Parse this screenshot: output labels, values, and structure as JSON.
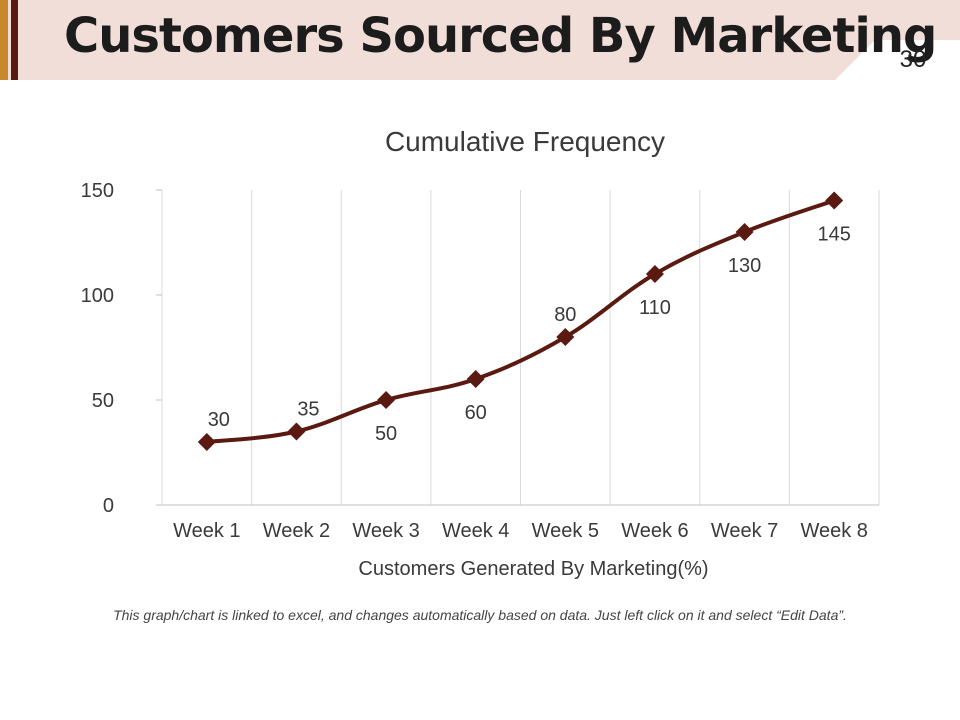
{
  "slide": {
    "title": "Customers Sourced By Marketing",
    "page_number": "30",
    "footnote": "This graph/chart is linked to excel, and changes automatically based on data. Just left click on it and select “Edit Data”."
  },
  "colors": {
    "header_bg": "#f2ded8",
    "accent_gold": "#c8882c",
    "accent_dark": "#5a1a12",
    "series": "#5a1a12",
    "grid": "#d9d9d9"
  },
  "chart_data": {
    "type": "line",
    "title": "Cumulative Frequency",
    "xlabel": "Customers Generated By Marketing(%)",
    "ylabel": "",
    "categories": [
      "Week 1",
      "Week 2",
      "Week 3",
      "Week 4",
      "Week 5",
      "Week 6",
      "Week 7",
      "Week 8"
    ],
    "series": [
      {
        "name": "Cumulative Frequency",
        "values": [
          30,
          35,
          50,
          60,
          80,
          110,
          130,
          145
        ]
      }
    ],
    "data_labels": [
      "30",
      "35",
      "50",
      "60",
      "80",
      "110",
      "130",
      "145"
    ],
    "yticks": [
      "0",
      "50",
      "100",
      "150"
    ],
    "ylim": [
      0,
      150
    ],
    "grid": true,
    "smooth": true,
    "marker": "diamond"
  }
}
